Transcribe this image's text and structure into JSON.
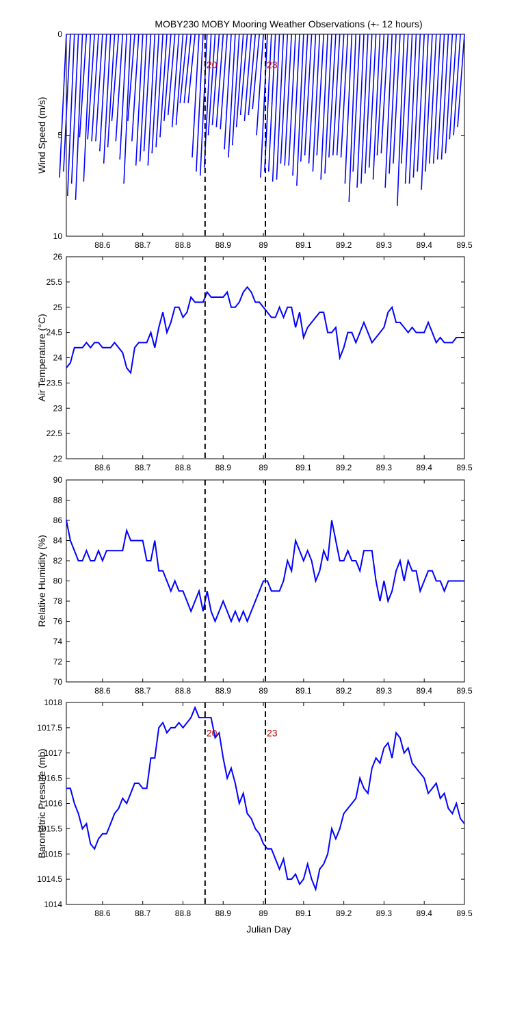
{
  "title": "MOBY230 MOBY Mooring Weather Observations (+- 12 hours)",
  "xlabel": "Julian Day",
  "colors": {
    "series": "#0000ff",
    "marker": "#000000",
    "annotation": "#c00000",
    "axis": "#000000"
  },
  "chart_data": [
    {
      "type": "line",
      "panel": "wind",
      "ylabel": "Wind Speed (m/s)",
      "xlim": [
        88.51,
        89.5
      ],
      "ylim": [
        0,
        10
      ],
      "y_reversed": true,
      "yticks": [
        "0",
        "5",
        "10"
      ],
      "xticks": [
        "88.6",
        "88.7",
        "88.8",
        "88.9",
        "89",
        "89.1",
        "89.2",
        "89.3",
        "89.4",
        "89.5"
      ],
      "marker_lines": [
        88.855,
        89.005
      ],
      "annotations": [
        {
          "text": "20",
          "x": 88.855,
          "y": 1.5
        },
        {
          "text": "23",
          "x": 89.005,
          "y": 1.5
        }
      ],
      "note": "wind vectors (sticks) from baseline 0 down to wind speed at each observation",
      "series": [
        {
          "x": [
            88.51,
            88.52,
            88.53,
            88.54,
            88.55,
            88.56,
            88.57,
            88.58,
            88.59,
            88.6,
            88.61,
            88.62,
            88.63,
            88.64,
            88.65,
            88.66,
            88.67,
            88.68,
            88.69,
            88.7,
            88.71,
            88.72,
            88.73,
            88.74,
            88.75,
            88.76,
            88.77,
            88.78,
            88.79,
            88.8,
            88.81,
            88.82,
            88.83,
            88.84,
            88.85,
            88.86,
            88.87,
            88.88,
            88.89,
            88.9,
            88.91,
            88.92,
            88.93,
            88.94,
            88.95,
            88.96,
            88.97,
            88.98,
            88.99,
            89.0,
            89.01,
            89.02,
            89.03,
            89.04,
            89.05,
            89.06,
            89.07,
            89.08,
            89.09,
            89.1,
            89.11,
            89.12,
            89.13,
            89.14,
            89.15,
            89.16,
            89.17,
            89.18,
            89.19,
            89.2,
            89.21,
            89.22,
            89.23,
            89.24,
            89.25,
            89.26,
            89.27,
            89.28,
            89.29,
            89.3,
            89.31,
            89.32,
            89.33,
            89.34,
            89.35,
            89.36,
            89.37,
            89.38,
            89.39,
            89.4,
            89.41,
            89.42,
            89.43,
            89.44,
            89.45,
            89.46,
            89.47,
            89.48,
            89.49,
            89.5
          ],
          "values": [
            7.1,
            6.8,
            8.0,
            7.4,
            8.2,
            5.1,
            7.3,
            5.2,
            5.3,
            5.3,
            5.8,
            6.4,
            5.6,
            4.3,
            5.3,
            6.2,
            7.4,
            4.3,
            5.3,
            6.5,
            6.3,
            5.8,
            6.5,
            5.9,
            5.6,
            5.1,
            4.3,
            4.0,
            4.6,
            4.5,
            3.4,
            3.4,
            3.4,
            6.1,
            6.8,
            7.0,
            6.6,
            5.0,
            4.5,
            4.6,
            4.7,
            5.7,
            6.1,
            5.5,
            4.6,
            4.0,
            4.3,
            4.0,
            3.7,
            5.0,
            7.1,
            6.8,
            6.8,
            7.3,
            7.2,
            6.4,
            6.5,
            6.5,
            7.0,
            7.5,
            6.3,
            6.0,
            6.4,
            6.8,
            6.0,
            7.2,
            6.9,
            6.1,
            6.0,
            6.0,
            6.1,
            7.4,
            8.3,
            6.8,
            7.6,
            7.4,
            6.9,
            6.6,
            7.2,
            6.0,
            5.9,
            7.6,
            6.9,
            6.4,
            8.5,
            6.4,
            7.4,
            7.4,
            7.1,
            6.8,
            7.7,
            6.8,
            6.4,
            6.4,
            6.2,
            6.2,
            5.9,
            5.2,
            5.0,
            4.6
          ]
        }
      ]
    },
    {
      "type": "line",
      "panel": "air-temperature",
      "ylabel": "Air Temperature (°C)",
      "xlim": [
        88.51,
        89.5
      ],
      "ylim": [
        22,
        26
      ],
      "yticks": [
        "22",
        "22.5",
        "23",
        "23.5",
        "24",
        "24.5",
        "25",
        "25.5",
        "26"
      ],
      "xticks": [
        "88.6",
        "88.7",
        "88.8",
        "88.9",
        "89",
        "89.1",
        "89.2",
        "89.3",
        "89.4",
        "89.5"
      ],
      "marker_lines": [
        88.855,
        89.005
      ],
      "series": [
        {
          "x": [
            88.51,
            88.52,
            88.53,
            88.54,
            88.55,
            88.56,
            88.57,
            88.58,
            88.59,
            88.6,
            88.61,
            88.62,
            88.63,
            88.64,
            88.65,
            88.66,
            88.67,
            88.68,
            88.69,
            88.7,
            88.71,
            88.72,
            88.73,
            88.74,
            88.75,
            88.76,
            88.77,
            88.78,
            88.79,
            88.8,
            88.81,
            88.82,
            88.83,
            88.84,
            88.85,
            88.86,
            88.87,
            88.88,
            88.89,
            88.9,
            88.91,
            88.92,
            88.93,
            88.94,
            88.95,
            88.96,
            88.97,
            88.98,
            88.99,
            89.0,
            89.01,
            89.02,
            89.03,
            89.04,
            89.05,
            89.06,
            89.07,
            89.08,
            89.09,
            89.1,
            89.11,
            89.12,
            89.13,
            89.14,
            89.15,
            89.16,
            89.17,
            89.18,
            89.19,
            89.2,
            89.21,
            89.22,
            89.23,
            89.24,
            89.25,
            89.26,
            89.27,
            89.28,
            89.29,
            89.3,
            89.31,
            89.32,
            89.33,
            89.34,
            89.35,
            89.36,
            89.37,
            89.38,
            89.39,
            89.4,
            89.41,
            89.42,
            89.43,
            89.44,
            89.45,
            89.46,
            89.47,
            89.48,
            89.49,
            89.5
          ],
          "values": [
            23.8,
            23.9,
            24.2,
            24.2,
            24.2,
            24.3,
            24.2,
            24.3,
            24.3,
            24.2,
            24.2,
            24.2,
            24.3,
            24.2,
            24.1,
            23.8,
            23.7,
            24.2,
            24.3,
            24.3,
            24.3,
            24.5,
            24.2,
            24.6,
            24.9,
            24.5,
            24.7,
            25.0,
            25.0,
            24.8,
            24.9,
            25.2,
            25.1,
            25.1,
            25.1,
            25.3,
            25.2,
            25.2,
            25.2,
            25.2,
            25.3,
            25.0,
            25.0,
            25.1,
            25.3,
            25.4,
            25.3,
            25.1,
            25.1,
            25.0,
            24.9,
            24.8,
            24.8,
            25.0,
            24.8,
            25.0,
            25.0,
            24.6,
            24.9,
            24.4,
            24.6,
            24.7,
            24.8,
            24.9,
            24.9,
            24.5,
            24.5,
            24.6,
            24.0,
            24.2,
            24.5,
            24.5,
            24.3,
            24.5,
            24.7,
            24.5,
            24.3,
            24.4,
            24.5,
            24.6,
            24.9,
            25.0,
            24.7,
            24.7,
            24.6,
            24.5,
            24.6,
            24.5,
            24.5,
            24.5,
            24.7,
            24.5,
            24.3,
            24.4,
            24.3,
            24.3,
            24.3,
            24.4,
            24.4,
            24.4
          ]
        }
      ]
    },
    {
      "type": "line",
      "panel": "relative-humidity",
      "ylabel": "Relative Humidity (%)",
      "xlim": [
        88.51,
        89.5
      ],
      "ylim": [
        70,
        90
      ],
      "yticks": [
        "70",
        "72",
        "74",
        "76",
        "78",
        "80",
        "82",
        "84",
        "86",
        "88",
        "90"
      ],
      "xticks": [
        "88.6",
        "88.7",
        "88.8",
        "88.9",
        "89",
        "89.1",
        "89.2",
        "89.3",
        "89.4",
        "89.5"
      ],
      "marker_lines": [
        88.855,
        89.005
      ],
      "series": [
        {
          "x": [
            88.51,
            88.52,
            88.53,
            88.54,
            88.55,
            88.56,
            88.57,
            88.58,
            88.59,
            88.6,
            88.61,
            88.62,
            88.63,
            88.64,
            88.65,
            88.66,
            88.67,
            88.68,
            88.69,
            88.7,
            88.71,
            88.72,
            88.73,
            88.74,
            88.75,
            88.76,
            88.77,
            88.78,
            88.79,
            88.8,
            88.81,
            88.82,
            88.83,
            88.84,
            88.85,
            88.86,
            88.87,
            88.88,
            88.89,
            88.9,
            88.91,
            88.92,
            88.93,
            88.94,
            88.95,
            88.96,
            88.97,
            88.98,
            88.99,
            89.0,
            89.01,
            89.02,
            89.03,
            89.04,
            89.05,
            89.06,
            89.07,
            89.08,
            89.09,
            89.1,
            89.11,
            89.12,
            89.13,
            89.14,
            89.15,
            89.16,
            89.17,
            89.18,
            89.19,
            89.2,
            89.21,
            89.22,
            89.23,
            89.24,
            89.25,
            89.26,
            89.27,
            89.28,
            89.29,
            89.3,
            89.31,
            89.32,
            89.33,
            89.34,
            89.35,
            89.36,
            89.37,
            89.38,
            89.39,
            89.4,
            89.41,
            89.42,
            89.43,
            89.44,
            89.45,
            89.46,
            89.47,
            89.48,
            89.49,
            89.5
          ],
          "values": [
            86,
            84,
            83,
            82,
            82,
            83,
            82,
            82,
            83,
            82,
            83,
            83,
            83,
            83,
            83,
            85,
            84,
            84,
            84,
            84,
            82,
            82,
            84,
            81,
            81,
            80,
            79,
            80,
            79,
            79,
            78,
            77,
            78,
            79,
            77,
            79,
            77,
            76,
            77,
            78,
            77,
            76,
            77,
            76,
            77,
            76,
            77,
            78,
            79,
            80,
            80,
            79,
            79,
            79,
            80,
            82,
            81,
            84,
            83,
            82,
            83,
            82,
            80,
            81,
            83,
            82,
            86,
            84,
            82,
            82,
            83,
            82,
            82,
            81,
            83,
            83,
            83,
            80,
            78,
            80,
            78,
            79,
            81,
            82,
            80,
            82,
            81,
            81,
            79,
            80,
            81,
            81,
            80,
            80,
            79,
            80,
            80,
            80,
            80,
            80
          ]
        }
      ]
    },
    {
      "type": "line",
      "panel": "barometric-pressure",
      "ylabel": "Barometric Pressure (mb)",
      "xlim": [
        88.51,
        89.5
      ],
      "ylim": [
        1014,
        1018
      ],
      "yticks": [
        "1014",
        "1014.5",
        "1015",
        "1015.5",
        "1016",
        "1016.5",
        "1017",
        "1017.5",
        "1018"
      ],
      "xticks": [
        "88.6",
        "88.7",
        "88.8",
        "88.9",
        "89",
        "89.1",
        "89.2",
        "89.3",
        "89.4",
        "89.5"
      ],
      "marker_lines": [
        88.855,
        89.005
      ],
      "annotations": [
        {
          "text": "20",
          "x": 88.855,
          "y": 1017.4
        },
        {
          "text": "23",
          "x": 89.005,
          "y": 1017.4
        }
      ],
      "series": [
        {
          "x": [
            88.51,
            88.52,
            88.53,
            88.54,
            88.55,
            88.56,
            88.57,
            88.58,
            88.59,
            88.6,
            88.61,
            88.62,
            88.63,
            88.64,
            88.65,
            88.66,
            88.67,
            88.68,
            88.69,
            88.7,
            88.71,
            88.72,
            88.73,
            88.74,
            88.75,
            88.76,
            88.77,
            88.78,
            88.79,
            88.8,
            88.81,
            88.82,
            88.83,
            88.84,
            88.85,
            88.86,
            88.87,
            88.88,
            88.89,
            88.9,
            88.91,
            88.92,
            88.93,
            88.94,
            88.95,
            88.96,
            88.97,
            88.98,
            88.99,
            89.0,
            89.01,
            89.02,
            89.03,
            89.04,
            89.05,
            89.06,
            89.07,
            89.08,
            89.09,
            89.1,
            89.11,
            89.12,
            89.13,
            89.14,
            89.15,
            89.16,
            89.17,
            89.18,
            89.19,
            89.2,
            89.21,
            89.22,
            89.23,
            89.24,
            89.25,
            89.26,
            89.27,
            89.28,
            89.29,
            89.3,
            89.31,
            89.32,
            89.33,
            89.34,
            89.35,
            89.36,
            89.37,
            89.38,
            89.39,
            89.4,
            89.41,
            89.42,
            89.43,
            89.44,
            89.45,
            89.46,
            89.47,
            89.48,
            89.49,
            89.5
          ],
          "values": [
            1016.3,
            1016.3,
            1016.0,
            1015.8,
            1015.5,
            1015.6,
            1015.2,
            1015.1,
            1015.3,
            1015.4,
            1015.4,
            1015.6,
            1015.8,
            1015.9,
            1016.1,
            1016.0,
            1016.2,
            1016.4,
            1016.4,
            1016.3,
            1016.3,
            1016.9,
            1016.9,
            1017.5,
            1017.6,
            1017.4,
            1017.5,
            1017.5,
            1017.6,
            1017.5,
            1017.6,
            1017.7,
            1017.9,
            1017.7,
            1017.7,
            1017.7,
            1017.7,
            1017.3,
            1017.4,
            1016.9,
            1016.5,
            1016.7,
            1016.4,
            1016.0,
            1016.2,
            1015.8,
            1015.7,
            1015.5,
            1015.4,
            1015.2,
            1015.1,
            1015.1,
            1014.9,
            1014.7,
            1014.9,
            1014.5,
            1014.5,
            1014.6,
            1014.4,
            1014.5,
            1014.8,
            1014.5,
            1014.3,
            1014.7,
            1014.8,
            1015.0,
            1015.5,
            1015.3,
            1015.5,
            1015.8,
            1015.9,
            1016.0,
            1016.1,
            1016.5,
            1016.3,
            1016.2,
            1016.7,
            1016.9,
            1016.8,
            1017.1,
            1017.2,
            1016.9,
            1017.4,
            1017.3,
            1017.0,
            1017.1,
            1016.8,
            1016.7,
            1016.6,
            1016.5,
            1016.2,
            1016.3,
            1016.4,
            1016.1,
            1016.2,
            1015.9,
            1015.8,
            1016.0,
            1015.7,
            1015.6
          ]
        }
      ]
    }
  ]
}
